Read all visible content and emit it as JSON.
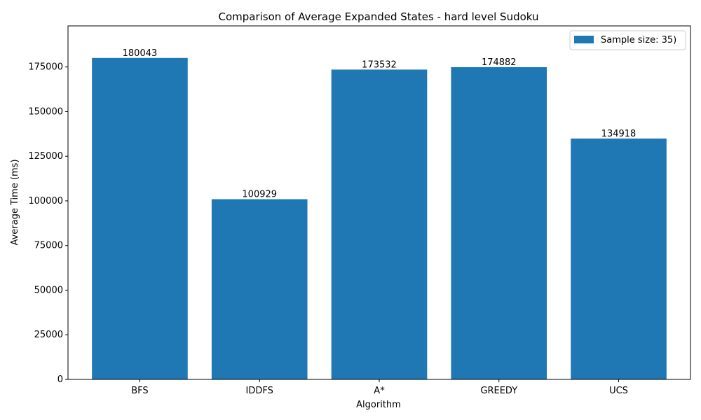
{
  "chart_data": {
    "type": "bar",
    "title": "Comparison of Average Expanded States - hard level Sudoku",
    "xlabel": "Algorithm",
    "ylabel": "Average Time (ms)",
    "categories": [
      "BFS",
      "IDDFS",
      "A*",
      "GREEDY",
      "UCS"
    ],
    "series": [
      {
        "name": "Sample size: 35)",
        "values": [
          180043,
          100929,
          173532,
          174882,
          134918
        ]
      }
    ],
    "data_labels": [
      "180043",
      "100929",
      "173532",
      "174882",
      "134918"
    ],
    "ylim": [
      0,
      198000
    ],
    "yticks": [
      0,
      25000,
      50000,
      75000,
      100000,
      125000,
      150000,
      175000
    ],
    "grid": false,
    "legend_position": "top-right",
    "bar_color": "#1f77b4"
  }
}
